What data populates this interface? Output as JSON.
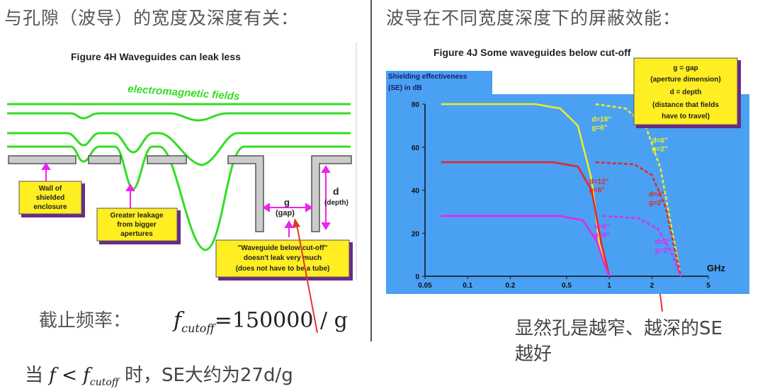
{
  "left_heading": "与孔隙（波导）的宽度及深度有关：",
  "right_heading": "波导在不同宽度深度下的屏蔽效能：",
  "figure_h": {
    "title": "Figure 4H    Waveguides can leak less",
    "fields_label": "electromagnetic fields",
    "label_wall": [
      "Wall of",
      "shielded",
      "enclosure"
    ],
    "label_leak": [
      "Greater leakage",
      "from bigger",
      "apertures"
    ],
    "label_waveguide": [
      "\"Waveguide below cut-off\"",
      "doesn't leak very much",
      "(does not have to be a tube)"
    ],
    "g_label": "g",
    "gap_label": "(gap)",
    "d_label": "d",
    "depth_label": "(depth)",
    "colors": {
      "fields": "#33dd22",
      "wall": "#c8c8c8",
      "note": "#ffee22",
      "arrow": "#ee22ee"
    }
  },
  "formula": {
    "label": "截止频率：",
    "f": "f",
    "sub": "cutoff",
    "rest": "=150000 / g"
  },
  "condition": {
    "prefix": "当",
    "f": "f",
    "lt": "<",
    "f2": "f",
    "sub": "cutoff",
    "suffix": "时，SE大约为27d/g"
  },
  "figure_j": {
    "title": "Figure 4J   Some waveguides below cut-off",
    "y_title": [
      "Shielding effectiveness",
      "(SE) in dB"
    ],
    "x_unit": "GHz",
    "legend": [
      "g  = gap",
      "(aperture dimension)",
      "d  = depth",
      "(distance that fields",
      "have to travel)"
    ],
    "bg": "#4aa0f2",
    "chart_data": {
      "type": "line",
      "ylabel": "Shielding effectiveness (SE) in dB",
      "xlabel": "GHz",
      "x_scale": "log",
      "xlim": [
        0.05,
        5
      ],
      "ylim": [
        0,
        80
      ],
      "x_ticks": [
        "0.05",
        "0.1",
        "0.2",
        "0.5",
        "1",
        "2",
        "5"
      ],
      "x_tick_values": [
        0.05,
        0.1,
        0.2,
        0.5,
        1,
        2,
        5
      ],
      "y_ticks": [
        "0",
        "20",
        "40",
        "60",
        "80"
      ],
      "y_tick_values": [
        0,
        20,
        40,
        60,
        80
      ],
      "series": [
        {
          "name": "d=18\" g=6\"",
          "label": [
            "d=18\"",
            "g=6\""
          ],
          "color": "#eeee22",
          "dashed": false,
          "label_pos": [
            0.75,
            72
          ],
          "points": [
            [
              0.065,
              80
            ],
            [
              0.3,
              80
            ],
            [
              0.45,
              78
            ],
            [
              0.6,
              70
            ],
            [
              0.75,
              45
            ],
            [
              0.85,
              15
            ],
            [
              1.0,
              0
            ]
          ]
        },
        {
          "name": "d=6\" g=2\"",
          "label": [
            "d=6\"",
            "g=2\""
          ],
          "color": "#eeee22",
          "dashed": true,
          "label_pos": [
            2.0,
            62
          ],
          "points": [
            [
              0.8,
              80
            ],
            [
              1.3,
              78
            ],
            [
              1.8,
              70
            ],
            [
              2.3,
              50
            ],
            [
              2.8,
              20
            ],
            [
              3.2,
              0
            ]
          ]
        },
        {
          "name": "d=12\" g=6\"",
          "label": [
            "d=12\"",
            "g=6\""
          ],
          "color": "#ee2222",
          "dashed": false,
          "label_pos": [
            0.72,
            43
          ],
          "points": [
            [
              0.065,
              53
            ],
            [
              0.4,
              53
            ],
            [
              0.6,
              51
            ],
            [
              0.75,
              40
            ],
            [
              0.88,
              15
            ],
            [
              1.0,
              0
            ]
          ]
        },
        {
          "name": "d=4\" g=2\"",
          "label": [
            "d=4\"",
            "g=2\""
          ],
          "color": "#ee2222",
          "dashed": true,
          "label_pos": [
            1.9,
            37
          ],
          "points": [
            [
              0.8,
              53
            ],
            [
              1.5,
              52
            ],
            [
              2.0,
              47
            ],
            [
              2.5,
              32
            ],
            [
              2.9,
              12
            ],
            [
              3.2,
              0
            ]
          ]
        },
        {
          "name": "d=6\" g=6\"",
          "label": [
            "d=6\"",
            "g=6\""
          ],
          "color": "#ee22ee",
          "dashed": false,
          "label_pos": [
            0.78,
            22
          ],
          "points": [
            [
              0.065,
              28
            ],
            [
              0.45,
              28
            ],
            [
              0.65,
              26
            ],
            [
              0.82,
              16
            ],
            [
              0.93,
              5
            ],
            [
              1.0,
              0
            ]
          ]
        },
        {
          "name": "d=2\" g=2\"",
          "label": [
            "d=2\"",
            "g=2\""
          ],
          "color": "#ee22ee",
          "dashed": true,
          "label_pos": [
            2.1,
            15
          ],
          "points": [
            [
              0.9,
              28
            ],
            [
              1.6,
              27
            ],
            [
              2.2,
              22
            ],
            [
              2.7,
              12
            ],
            [
              3.2,
              0
            ]
          ]
        }
      ]
    }
  },
  "conclusion": [
    "显然孔是越窄、越深的SE",
    "越好"
  ]
}
